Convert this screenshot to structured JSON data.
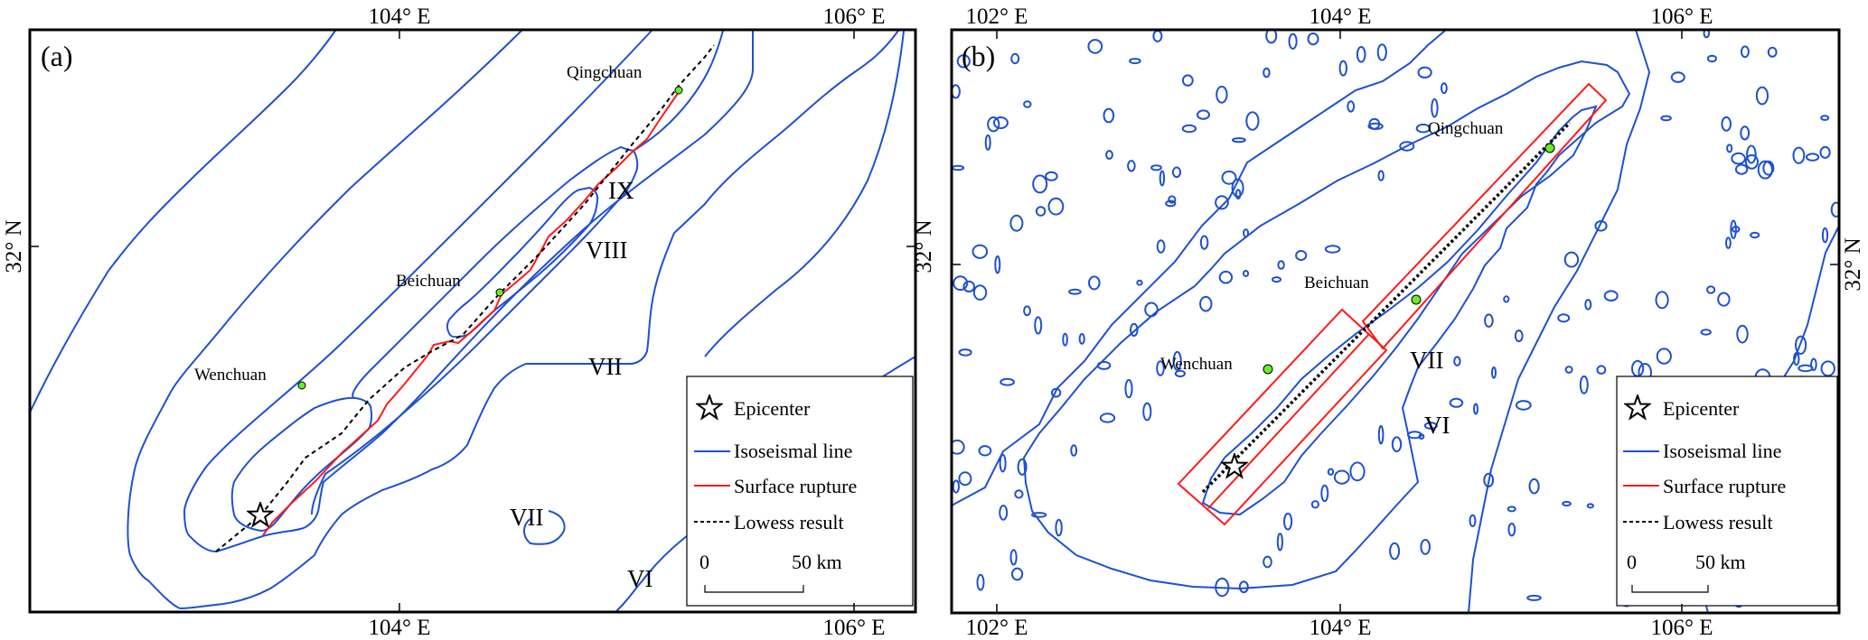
{
  "colors": {
    "isoseismal": "#1e50d2",
    "rupture": "#ff1a1a",
    "lowess": "#000000",
    "city_marker": "#66ee22"
  },
  "panel_a": {
    "label": "(a)",
    "x_ticks": [
      "104° E",
      "106° E"
    ],
    "y_ticks": [
      "32° N"
    ],
    "cities": {
      "qingchuan": "Qingchuan",
      "beichuan": "Beichuan",
      "wenchuan": "Wenchuan"
    },
    "intensity_labels": [
      "IX",
      "VIII",
      "VII",
      "VII",
      "VI"
    ]
  },
  "panel_b": {
    "label": "(b)",
    "x_ticks": [
      "102° E",
      "104° E",
      "106° E"
    ],
    "y_ticks": [
      "32° N"
    ],
    "cities": {
      "qingchuan": "Qingchuan",
      "beichuan": "Beichuan",
      "wenchuan": "Wenchuan"
    },
    "intensity_labels": [
      "VII",
      "VI"
    ]
  },
  "legend": {
    "epicenter": "Epicenter",
    "isoseismal": "Isoseismal line",
    "rupture": "Surface rupture",
    "lowess": "Lowess result",
    "scale_start": "0",
    "scale_end": "50 km"
  }
}
